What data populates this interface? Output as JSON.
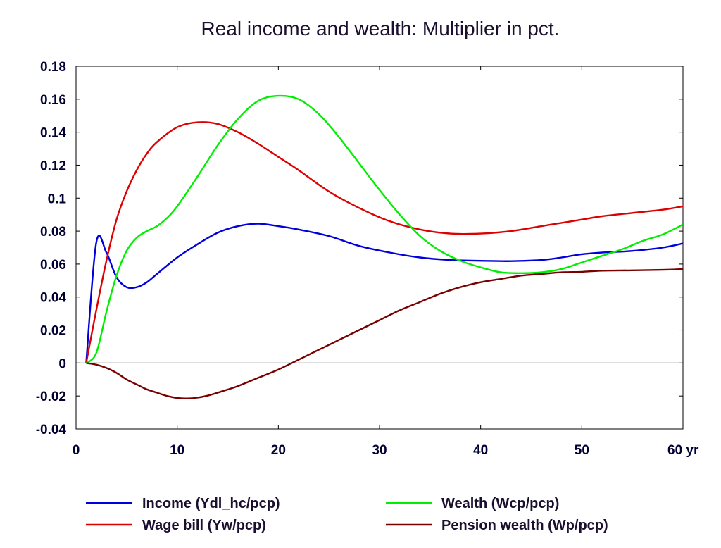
{
  "chart_data": {
    "type": "line",
    "title": "Real income and wealth: Multiplier in pct.",
    "xlabel": "",
    "ylabel": "",
    "xlim": [
      0,
      60
    ],
    "ylim": [
      -0.04,
      0.18
    ],
    "x_ticks": [
      0,
      10,
      20,
      30,
      40,
      50,
      60
    ],
    "x_tick_labels": [
      "0",
      "10",
      "20",
      "30",
      "40",
      "50",
      "60 yr"
    ],
    "y_ticks": [
      -0.04,
      -0.02,
      0,
      0.02,
      0.04,
      0.06,
      0.08,
      0.1,
      0.12,
      0.14,
      0.16,
      0.18
    ],
    "y_tick_labels": [
      "-0.04",
      "-0.02",
      "0",
      "0.02",
      "0.04",
      "0.06",
      "0.08",
      "0.1",
      "0.12",
      "0.14",
      "0.16",
      "0.18"
    ],
    "zero_line": true,
    "grid": false,
    "legend_position": "bottom",
    "series": [
      {
        "name": "Income (Ydl_hc/pcp)",
        "color": "#0000dd",
        "x": [
          1,
          2,
          3,
          4,
          5,
          6,
          7,
          8,
          10,
          12,
          14,
          16,
          18,
          20,
          22,
          25,
          28,
          31,
          34,
          37,
          40,
          43,
          46,
          48,
          50,
          52,
          55,
          58,
          60
        ],
        "y": [
          0.0,
          0.073,
          0.067,
          0.052,
          0.046,
          0.046,
          0.049,
          0.054,
          0.064,
          0.072,
          0.079,
          0.083,
          0.0845,
          0.083,
          0.081,
          0.077,
          0.071,
          0.067,
          0.064,
          0.0625,
          0.062,
          0.0618,
          0.0625,
          0.064,
          0.066,
          0.067,
          0.068,
          0.07,
          0.0725
        ]
      },
      {
        "name": "Wage bill (Yw/pcp)",
        "color": "#dd0000",
        "x": [
          1,
          2,
          3,
          4,
          5,
          6,
          7,
          8,
          10,
          12,
          14,
          16,
          18,
          20,
          22,
          25,
          28,
          31,
          34,
          37,
          40,
          43,
          46,
          48,
          50,
          52,
          55,
          58,
          60
        ],
        "y": [
          0.0,
          0.032,
          0.062,
          0.087,
          0.104,
          0.117,
          0.127,
          0.134,
          0.143,
          0.146,
          0.145,
          0.14,
          0.133,
          0.125,
          0.117,
          0.104,
          0.094,
          0.086,
          0.081,
          0.0785,
          0.0785,
          0.08,
          0.083,
          0.085,
          0.087,
          0.089,
          0.091,
          0.093,
          0.095
        ]
      },
      {
        "name": "Wealth (Wcp/pcp)",
        "color": "#00ee00",
        "x": [
          1,
          2,
          3,
          4,
          5,
          6,
          7,
          8,
          9,
          10,
          12,
          14,
          16,
          18,
          20,
          22,
          24,
          26,
          28,
          30,
          32,
          34,
          36,
          38,
          40,
          42,
          44,
          46,
          48,
          50,
          52,
          54,
          56,
          58,
          60
        ],
        "y": [
          0.0,
          0.006,
          0.031,
          0.053,
          0.068,
          0.076,
          0.08,
          0.083,
          0.088,
          0.095,
          0.113,
          0.132,
          0.148,
          0.159,
          0.162,
          0.16,
          0.151,
          0.137,
          0.121,
          0.105,
          0.09,
          0.077,
          0.068,
          0.062,
          0.058,
          0.055,
          0.0545,
          0.055,
          0.057,
          0.061,
          0.065,
          0.069,
          0.074,
          0.078,
          0.084
        ]
      },
      {
        "name": "Pension wealth (Wp/pcp)",
        "color": "#770000",
        "x": [
          1,
          2,
          3,
          4,
          5,
          6,
          7,
          8,
          9,
          10,
          11,
          12,
          13,
          14,
          16,
          18,
          20,
          22,
          24,
          26,
          28,
          30,
          32,
          34,
          36,
          38,
          40,
          42,
          44,
          46,
          48,
          50,
          52,
          55,
          58,
          60
        ],
        "y": [
          0.0,
          -0.001,
          -0.003,
          -0.006,
          -0.01,
          -0.013,
          -0.016,
          -0.018,
          -0.02,
          -0.0212,
          -0.0215,
          -0.021,
          -0.0198,
          -0.018,
          -0.014,
          -0.009,
          -0.004,
          0.002,
          0.008,
          0.014,
          0.02,
          0.026,
          0.032,
          0.037,
          0.042,
          0.046,
          0.049,
          0.051,
          0.053,
          0.054,
          0.055,
          0.0553,
          0.056,
          0.0562,
          0.0565,
          0.057
        ]
      }
    ]
  }
}
